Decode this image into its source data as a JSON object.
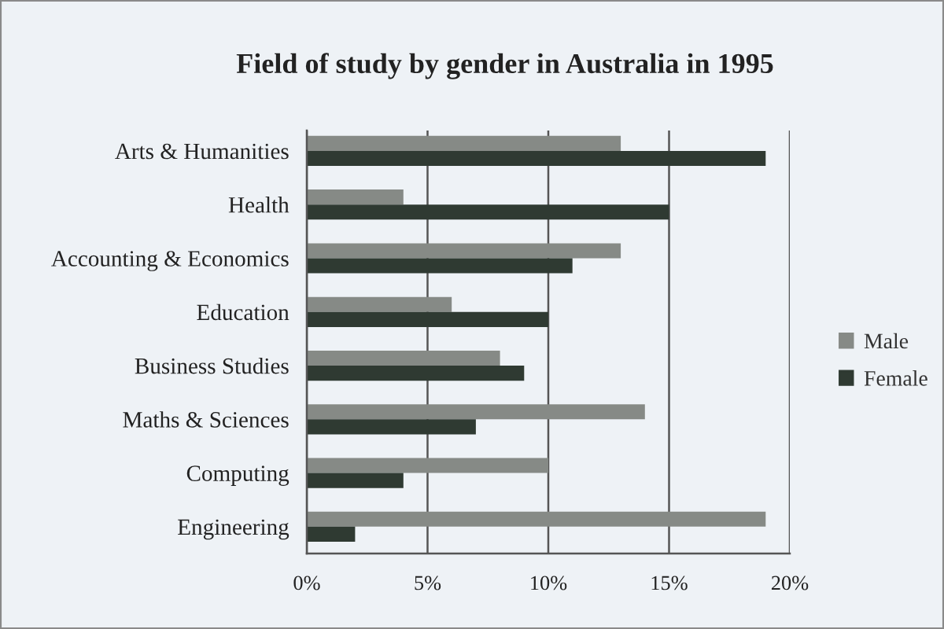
{
  "chart_data": {
    "type": "bar",
    "orientation": "horizontal",
    "title": "Field of study by gender in Australia in 1995",
    "categories": [
      "Arts & Humanities",
      "Health",
      "Accounting & Economics",
      "Education",
      "Business Studies",
      "Maths & Sciences",
      "Computing",
      "Engineering"
    ],
    "series": [
      {
        "name": "Male",
        "color": "#868a86",
        "values": [
          13,
          4,
          13,
          6,
          8,
          14,
          10,
          19
        ]
      },
      {
        "name": "Female",
        "color": "#2f3a32",
        "values": [
          19,
          15,
          11,
          10,
          9,
          7,
          4,
          2
        ]
      }
    ],
    "xlim": [
      0,
      20
    ],
    "xticks": [
      {
        "value": 0,
        "label": "0%"
      },
      {
        "value": 5,
        "label": "5%"
      },
      {
        "value": 10,
        "label": "10%"
      },
      {
        "value": 15,
        "label": "15%"
      },
      {
        "value": 20,
        "label": "20%"
      }
    ],
    "grid": "x",
    "legend": "right"
  }
}
